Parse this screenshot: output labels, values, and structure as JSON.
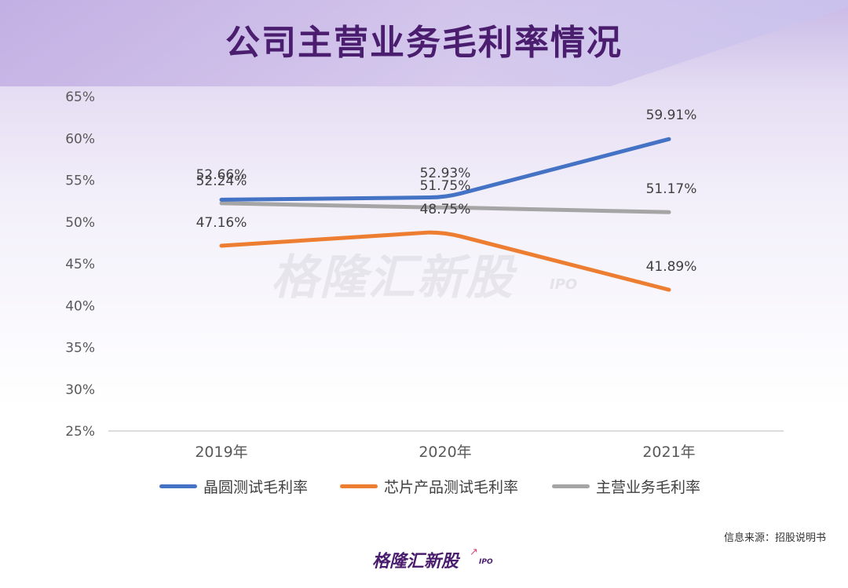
{
  "title": "公司主营业务毛利率情况",
  "watermark": {
    "main": "格隆汇新股",
    "sub": "IPO"
  },
  "source": "信息来源：招股说明书",
  "logo": {
    "main": "格隆汇新股",
    "sub": "IPO",
    "arrow_icon": "up-arrow-icon"
  },
  "colors": {
    "wafer": "#4472c4",
    "chip": "#ed7d31",
    "main": "#a5a5a5",
    "title": "#4a1d6e"
  },
  "chart_data": {
    "type": "line",
    "categories": [
      "2019年",
      "2020年",
      "2021年"
    ],
    "ylim": [
      25,
      65
    ],
    "yticks": [
      "25%",
      "30%",
      "35%",
      "40%",
      "45%",
      "50%",
      "55%",
      "60%",
      "65%"
    ],
    "ytick_values": [
      25,
      30,
      35,
      40,
      45,
      50,
      55,
      60,
      65
    ],
    "legend_position": "bottom",
    "grid": false,
    "series": [
      {
        "name": "晶圆测试毛利率",
        "values": [
          52.66,
          52.93,
          59.91
        ],
        "labels": [
          "52.66%",
          "52.93%",
          "59.91%"
        ],
        "color": "#4472c4"
      },
      {
        "name": "芯片产品测试毛利率",
        "values": [
          47.16,
          48.75,
          41.89
        ],
        "labels": [
          "47.16%",
          "48.75%",
          "41.89%"
        ],
        "color": "#ed7d31"
      },
      {
        "name": "主营业务毛利率",
        "values": [
          52.24,
          51.75,
          51.17
        ],
        "labels": [
          "52.24%",
          "51.75%",
          "51.17%"
        ],
        "color": "#a5a5a5"
      }
    ]
  }
}
